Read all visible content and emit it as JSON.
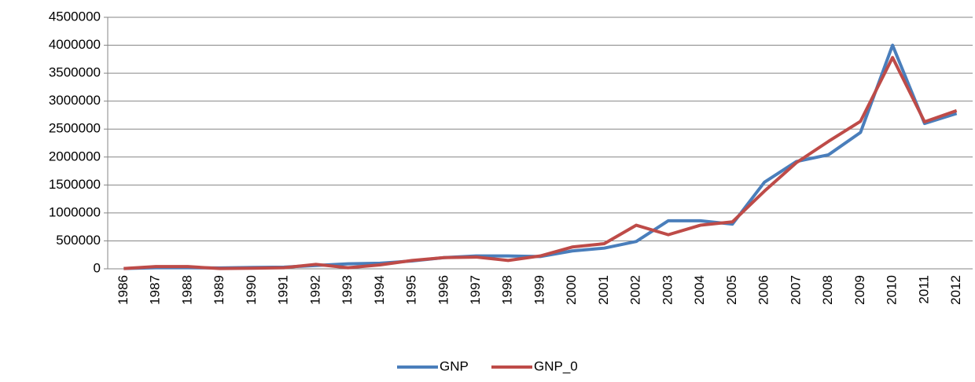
{
  "chart_data": {
    "type": "line",
    "categories": [
      "1986",
      "1987",
      "1988",
      "1989",
      "1990",
      "1991",
      "1992",
      "1993",
      "1994",
      "1995",
      "1996",
      "1997",
      "1998",
      "1999",
      "2000",
      "2001",
      "2002",
      "2003",
      "2004",
      "2005",
      "2006",
      "2007",
      "2008",
      "2009",
      "2010",
      "2011",
      "2012"
    ],
    "series": [
      {
        "name": "GNP",
        "color": "#4a7ebb",
        "values": [
          5000,
          20000,
          20000,
          15000,
          25000,
          30000,
          60000,
          90000,
          100000,
          140000,
          200000,
          230000,
          230000,
          220000,
          320000,
          370000,
          490000,
          860000,
          860000,
          800000,
          1550000,
          1920000,
          2040000,
          2440000,
          4000000,
          2600000,
          2780000
        ]
      },
      {
        "name": "GNP_0",
        "color": "#be4b48",
        "values": [
          5000,
          40000,
          40000,
          5000,
          10000,
          20000,
          80000,
          20000,
          70000,
          150000,
          200000,
          210000,
          150000,
          230000,
          390000,
          450000,
          780000,
          610000,
          780000,
          840000,
          1390000,
          1900000,
          2280000,
          2640000,
          3780000,
          2630000,
          2830000
        ]
      }
    ],
    "ylim": [
      0,
      4500000
    ],
    "yticks": [
      0,
      500000,
      1000000,
      1500000,
      2000000,
      2500000,
      3000000,
      3500000,
      4000000,
      4500000
    ],
    "grid": true,
    "legend": "bottom"
  }
}
